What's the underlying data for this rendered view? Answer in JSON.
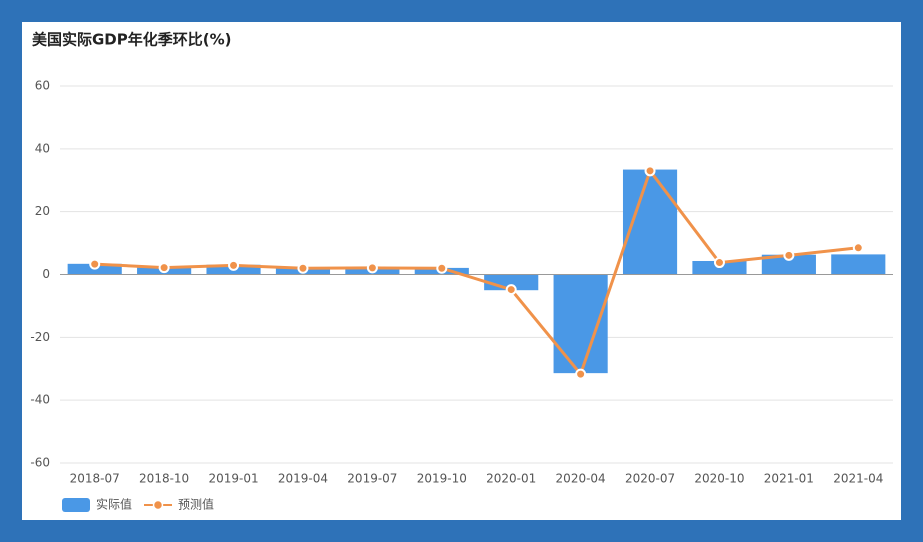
{
  "chart_data": {
    "type": "bar",
    "title": "美国实际GDP年化季环比(%)",
    "categories": [
      "2018-07",
      "2018-10",
      "2019-01",
      "2019-04",
      "2019-07",
      "2019-10",
      "2020-01",
      "2020-04",
      "2020-07",
      "2020-10",
      "2021-01",
      "2021-04"
    ],
    "series": [
      {
        "name": "实际值",
        "type": "bar",
        "color": "#4a98e6",
        "values": [
          3.4,
          2.2,
          3.1,
          2.0,
          2.1,
          2.1,
          -5.0,
          -31.4,
          33.4,
          4.3,
          6.3,
          6.4
        ]
      },
      {
        "name": "预测值",
        "type": "line",
        "color": "#f0924a",
        "values": [
          3.3,
          2.2,
          2.9,
          2.0,
          2.1,
          2.0,
          -4.8,
          -31.7,
          33.0,
          3.8,
          6.1,
          8.5
        ]
      }
    ],
    "ylim": [
      -60,
      60
    ],
    "yticks": [
      -60,
      -40,
      -20,
      0,
      20,
      40,
      60
    ],
    "grid": true,
    "legend": "bottom-left"
  }
}
